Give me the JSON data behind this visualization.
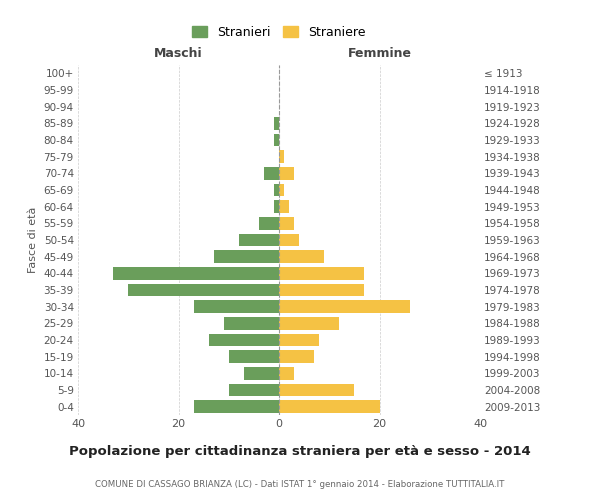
{
  "age_groups": [
    "0-4",
    "5-9",
    "10-14",
    "15-19",
    "20-24",
    "25-29",
    "30-34",
    "35-39",
    "40-44",
    "45-49",
    "50-54",
    "55-59",
    "60-64",
    "65-69",
    "70-74",
    "75-79",
    "80-84",
    "85-89",
    "90-94",
    "95-99",
    "100+"
  ],
  "birth_years": [
    "2009-2013",
    "2004-2008",
    "1999-2003",
    "1994-1998",
    "1989-1993",
    "1984-1988",
    "1979-1983",
    "1974-1978",
    "1969-1973",
    "1964-1968",
    "1959-1963",
    "1954-1958",
    "1949-1953",
    "1944-1948",
    "1939-1943",
    "1934-1938",
    "1929-1933",
    "1924-1928",
    "1919-1923",
    "1914-1918",
    "≤ 1913"
  ],
  "maschi": [
    17,
    10,
    7,
    10,
    14,
    11,
    17,
    30,
    33,
    13,
    8,
    4,
    1,
    1,
    3,
    0,
    1,
    1,
    0,
    0,
    0
  ],
  "femmine": [
    20,
    15,
    3,
    7,
    8,
    12,
    26,
    17,
    17,
    9,
    4,
    3,
    2,
    1,
    3,
    1,
    0,
    0,
    0,
    0,
    0
  ],
  "maschi_color": "#6a9e5b",
  "femmine_color": "#f5c244",
  "background_color": "#ffffff",
  "grid_color": "#cccccc",
  "title": "Popolazione per cittadinanza straniera per età e sesso - 2014",
  "subtitle": "COMUNE DI CASSAGO BRIANZA (LC) - Dati ISTAT 1° gennaio 2014 - Elaborazione TUTTITALIA.IT",
  "ylabel_left": "Fasce di età",
  "xlabel_left": "Maschi",
  "xlabel_right": "Femmine",
  "legend_maschi": "Stranieri",
  "legend_femmine": "Straniere",
  "xlim": 40
}
